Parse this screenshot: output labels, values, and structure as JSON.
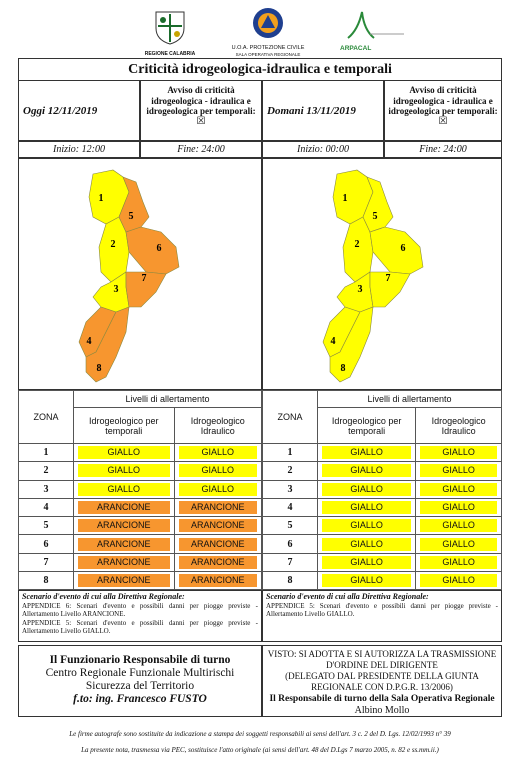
{
  "header": {
    "logos": [
      "REGIONE CALABRIA",
      "U.O.A. PROTEZIONE CIVILE",
      "SALA OPERATIVA REGIONALE",
      "ARPACAL"
    ],
    "title": "Criticità idrogeologica-idraulica e temporali"
  },
  "level_colors": {
    "GIALLO": "#ffff00",
    "ARANCIONE": "#f7962f"
  },
  "panels": [
    {
      "date": "Oggi 12/11/2019",
      "notice": "Avviso di criticità idrogeologica - idraulica e idrogeologica per temporali:",
      "checkbox": "☒",
      "start": "Inizio: 12:00",
      "end": "Fine: 24:00",
      "table": {
        "group_header": "Livelli di allertamento",
        "columns": [
          "ZONA",
          "Idrogeologico per temporali",
          "Idrogeologico Idraulico"
        ],
        "rows": [
          [
            "1",
            "GIALLO",
            "GIALLO"
          ],
          [
            "2",
            "GIALLO",
            "GIALLO"
          ],
          [
            "3",
            "GIALLO",
            "GIALLO"
          ],
          [
            "4",
            "ARANCIONE",
            "ARANCIONE"
          ],
          [
            "5",
            "ARANCIONE",
            "ARANCIONE"
          ],
          [
            "6",
            "ARANCIONE",
            "ARANCIONE"
          ],
          [
            "7",
            "ARANCIONE",
            "ARANCIONE"
          ],
          [
            "8",
            "ARANCIONE",
            "ARANCIONE"
          ]
        ]
      },
      "scenario": {
        "title": "Scenario d'evento di cui alla Direttiva Regionale:",
        "lines": [
          "APPENDICE 6: Scenari d'evento e possibili danni per piogge previste - Allertamento Livello ARANCIONE.",
          "APPENDICE 5: Scenari d'evento e possibili danni per piogge previste - Allertamento Livello GIALLO."
        ]
      }
    },
    {
      "date": "Domani 13/11/2019",
      "notice": "Avviso di criticità idrogeologica - idraulica e idrogeologica per temporali:",
      "checkbox": "☒",
      "start": "Inizio: 00:00",
      "end": "Fine: 24:00",
      "table": {
        "group_header": "Livelli di allertamento",
        "columns": [
          "ZONA",
          "Idrogeologico per temporali",
          "Idrogeologico Idraulico"
        ],
        "rows": [
          [
            "1",
            "GIALLO",
            "GIALLO"
          ],
          [
            "2",
            "GIALLO",
            "GIALLO"
          ],
          [
            "3",
            "GIALLO",
            "GIALLO"
          ],
          [
            "4",
            "GIALLO",
            "GIALLO"
          ],
          [
            "5",
            "GIALLO",
            "GIALLO"
          ],
          [
            "6",
            "GIALLO",
            "GIALLO"
          ],
          [
            "7",
            "GIALLO",
            "GIALLO"
          ],
          [
            "8",
            "GIALLO",
            "GIALLO"
          ]
        ]
      },
      "scenario": {
        "title": "Scenario d'evento di cui alla Direttiva Regionale:",
        "lines": [
          "APPENDICE 5: Scenari d'evento e possibili danni per piogge previste - Allertamento Livello GIALLO."
        ]
      }
    }
  ],
  "footer": {
    "left": [
      "Il Funzionario Responsabile di turno",
      "Centro Regionale Funzionale Multirischi",
      "Sicurezza del Territorio",
      "f.to: ing. Francesco FUSTO"
    ],
    "right": [
      "VISTO: SI ADOTTA E SI AUTORIZZA LA TRASMISSIONE",
      "D'ORDINE DEL DIRIGENTE",
      "(DELEGATO DAL PRESIDENTE DELLA GIUNTA",
      "REGIONALE CON D.P.G.R. 13/2006)",
      "Il Responsabile di turno della Sala Operativa Regionale",
      "Albino Mollo"
    ]
  },
  "notes": [
    "Le firme autografe sono sostituite da indicazione a stampa dei soggetti responsabili ai sensi dell'art. 3 c. 2 del D. Lgs. 12/02/1993 n° 39",
    "La presente nota, trasmessa via PEC, sostituisce l'atto originale (ai sensi dell'art. 48 del D.Lgs 7 marzo 2005, n. 82 e ss.mm.ii.)"
  ]
}
